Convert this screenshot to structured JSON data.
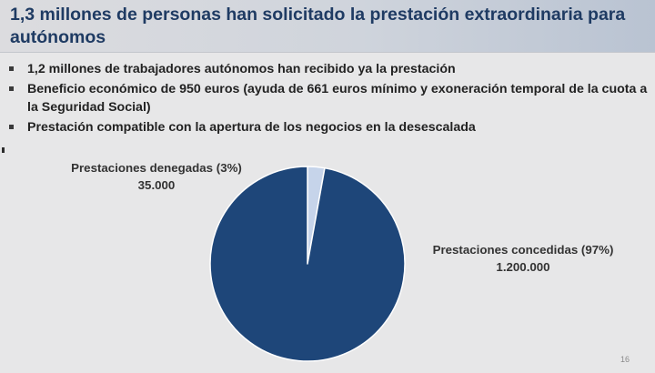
{
  "slide": {
    "title": "1,3 millones de personas han solicitado la prestación extraordinaria para autónomos",
    "bullets": [
      "1,2 millones de trabajadores autónomos han recibido ya la prestación",
      "Beneficio económico de 950 euros (ayuda de 661 euros mínimo y exoneración temporal de la cuota a la Seguridad Social)",
      "Prestación compatible con la apertura de los negocios en la desescalada"
    ],
    "page_number": "16"
  },
  "chart_data": {
    "type": "pie",
    "slices": [
      {
        "label": "Prestaciones denegadas (3%)",
        "value": 35000,
        "value_label": "35.000",
        "percent": 3,
        "color": "#c6d4ea"
      },
      {
        "label": "Prestaciones concedidas (97%)",
        "value": 1200000,
        "value_label": "1.200.000",
        "percent": 97,
        "color": "#1e4679"
      }
    ],
    "start_angle_deg": 0,
    "direction": "clockwise",
    "slice_border_color": "#ffffff"
  }
}
